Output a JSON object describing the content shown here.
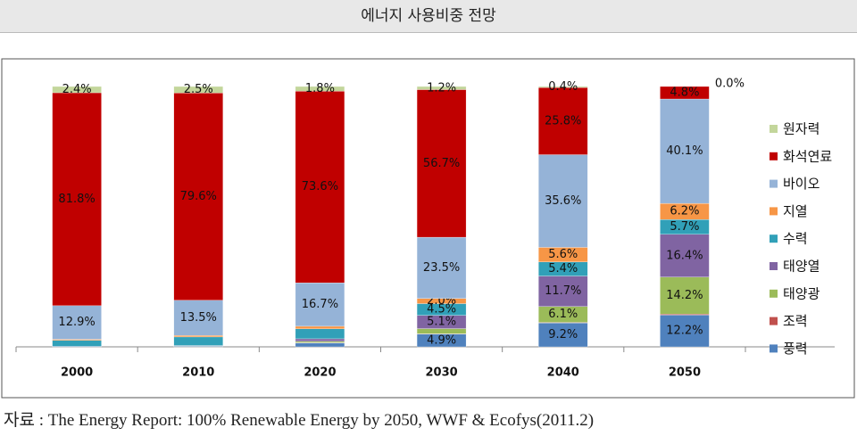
{
  "chart_data": {
    "type": "stacked-bar",
    "title": "에너지 사용비중 전망",
    "source": "자료 : The Energy Report: 100% Renewable Energy by 2050, WWF & Ecofys(2011.2)",
    "categories": [
      "2000",
      "2010",
      "2020",
      "2030",
      "2040",
      "2050"
    ],
    "ylim": [
      0,
      100
    ],
    "series": [
      {
        "name": "풍력",
        "color": "#4f81bd",
        "values": [
          0.2,
          0.3,
          1.5,
          4.9,
          9.2,
          12.2
        ],
        "value_labels": [
          null,
          null,
          null,
          "4.9%",
          "9.2%",
          "12.2%"
        ]
      },
      {
        "name": "조력",
        "color": "#c0504d",
        "values": [
          0,
          0,
          0.1,
          0.1,
          0.2,
          0.4
        ],
        "value_labels": [
          null,
          null,
          null,
          null,
          null,
          null
        ]
      },
      {
        "name": "태양광",
        "color": "#9bbb59",
        "values": [
          0,
          0.1,
          0.5,
          2.0,
          6.1,
          14.2
        ],
        "value_labels": [
          null,
          null,
          null,
          null,
          "6.1%",
          "14.2%"
        ]
      },
      {
        "name": "태양열",
        "color": "#8064a2",
        "values": [
          0,
          0.1,
          1.0,
          5.1,
          11.7,
          16.4
        ],
        "value_labels": [
          null,
          null,
          null,
          "5.1%",
          "11.7%",
          "16.4%"
        ]
      },
      {
        "name": "수력",
        "color": "#31a0b8",
        "values": [
          2.3,
          3.3,
          3.8,
          4.5,
          5.4,
          5.7
        ],
        "value_labels": [
          null,
          null,
          null,
          "4.5%",
          "5.4%",
          "5.7%"
        ]
      },
      {
        "name": "지열",
        "color": "#f79646",
        "values": [
          0.4,
          0.6,
          1.0,
          2.0,
          5.6,
          6.2
        ],
        "value_labels": [
          null,
          null,
          null,
          "2.0%",
          "5.6%",
          "6.2%"
        ]
      },
      {
        "name": "바이오",
        "color": "#95b3d7",
        "values": [
          12.9,
          13.5,
          16.7,
          23.5,
          35.6,
          40.1
        ],
        "value_labels": [
          "12.9%",
          "13.5%",
          "16.7%",
          "23.5%",
          "35.6%",
          "40.1%"
        ]
      },
      {
        "name": "화석연료",
        "color": "#c00000",
        "values": [
          81.8,
          79.6,
          73.6,
          56.7,
          25.8,
          4.8
        ],
        "value_labels": [
          "81.8%",
          "79.6%",
          "73.6%",
          "56.7%",
          "25.8%",
          "4.8%"
        ]
      },
      {
        "name": "원자력",
        "color": "#c3d69b",
        "values": [
          2.4,
          2.5,
          1.8,
          1.2,
          0.4,
          0.0
        ],
        "value_labels": [
          "2.4%",
          "2.5%",
          "1.8%",
          "1.2%",
          "0.4%",
          "0.0%"
        ]
      }
    ]
  }
}
